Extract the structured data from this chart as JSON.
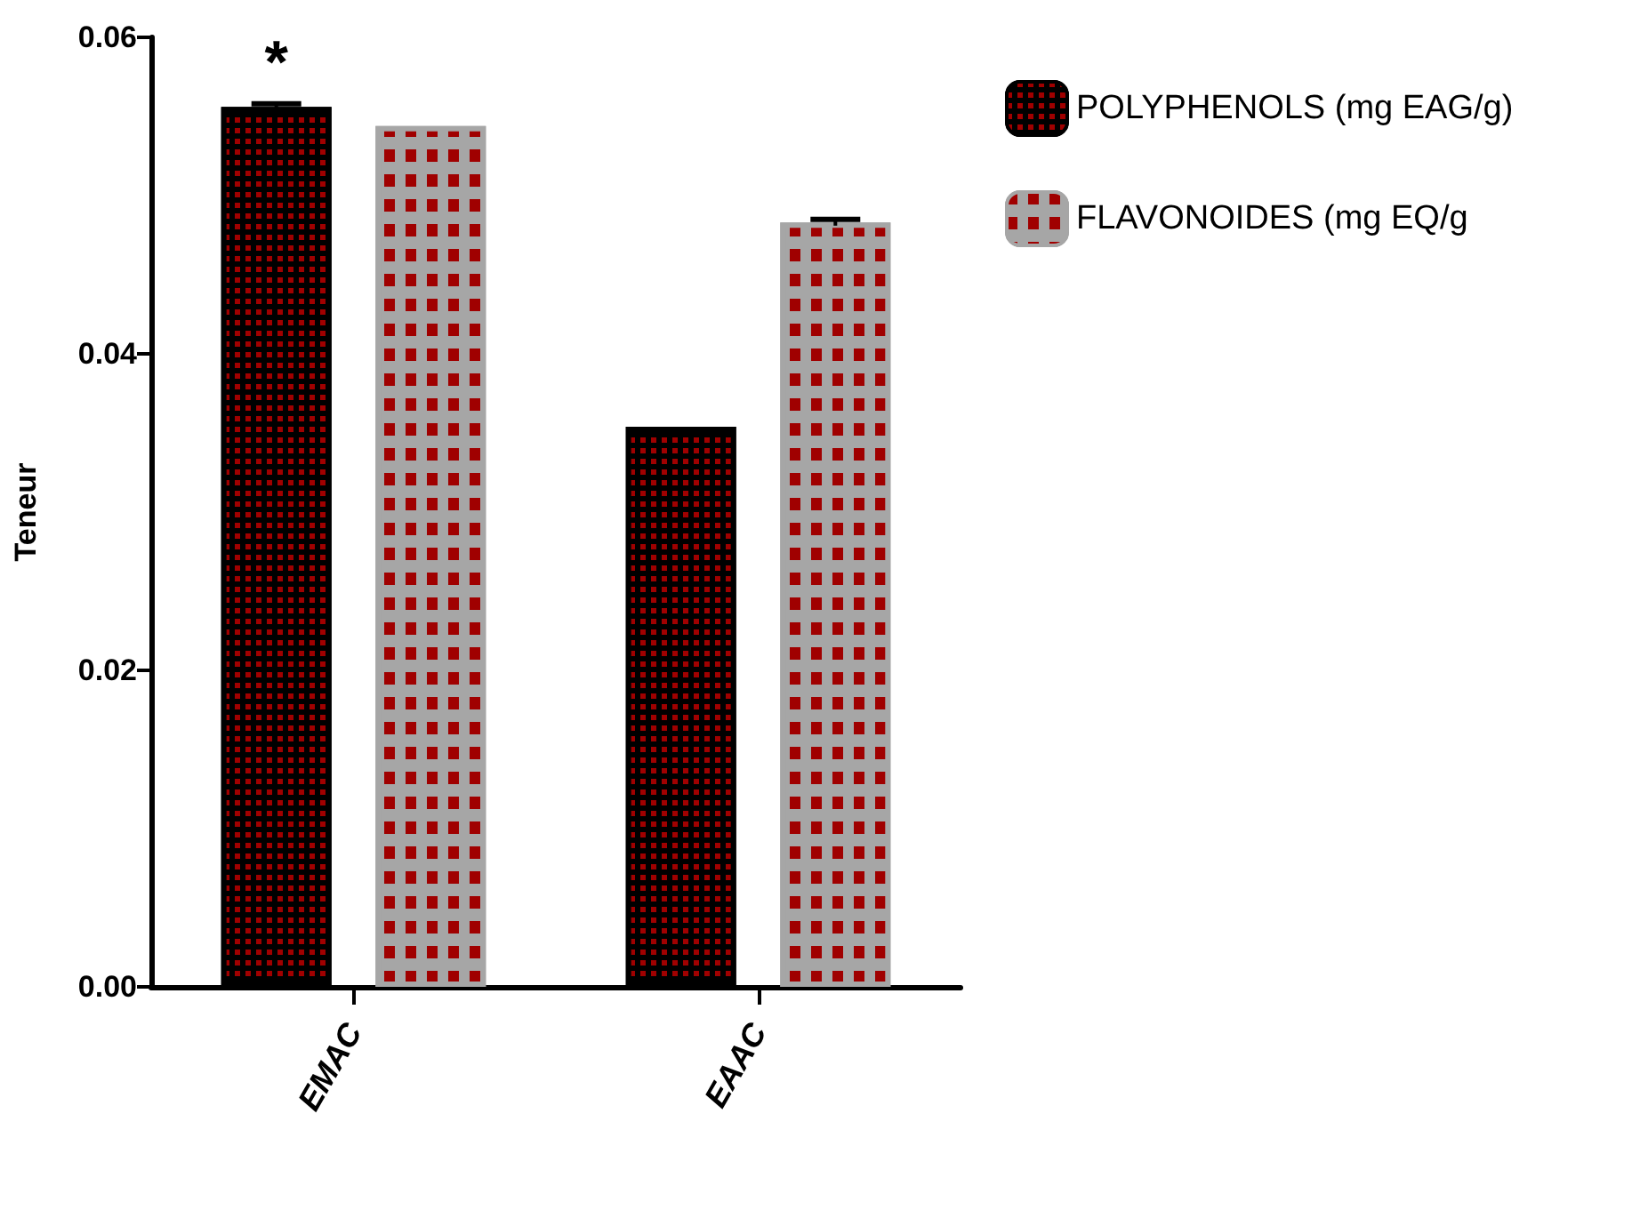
{
  "chart_data": {
    "type": "bar",
    "ylabel": "Teneur",
    "categories": [
      "EMAC",
      "EAAC"
    ],
    "series": [
      {
        "name": "POLYPHENOLS (mg EAG/g)",
        "color": "#000000",
        "values": [
          0.0556,
          0.0354
        ],
        "errors": [
          0.0002,
          null
        ]
      },
      {
        "name": "FLAVONOIDES (mg EQ/g",
        "color": "#a6a6a6",
        "values": [
          0.0544,
          0.0483
        ],
        "errors": [
          null,
          0.0002
        ]
      }
    ],
    "ylim": [
      0,
      0.06
    ],
    "yticks": [
      {
        "value": 0,
        "label": "0.00"
      },
      {
        "value": 0.02,
        "label": "0.02"
      },
      {
        "value": 0.04,
        "label": "0.04"
      },
      {
        "value": 0.06,
        "label": "0.06"
      }
    ],
    "annotations": [
      "*"
    ],
    "grid": false,
    "legend": "top right"
  }
}
